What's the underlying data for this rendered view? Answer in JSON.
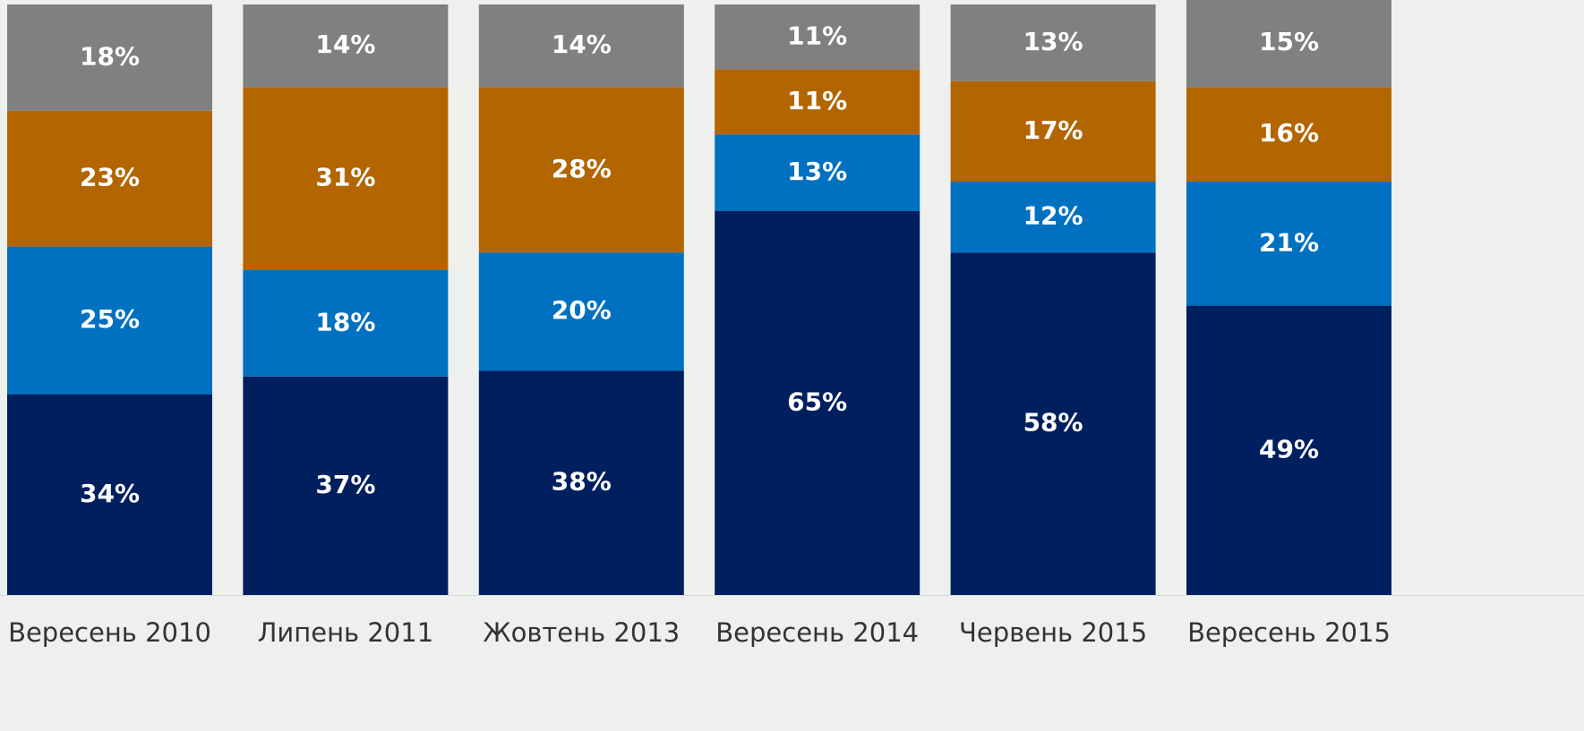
{
  "chart_data": {
    "type": "stacked_bar",
    "categories": [
      "Вересень 2010",
      "Липень 2011",
      "Жовтень 2013",
      "Вересень 2014",
      "Червень 2015",
      "Вересень 2015"
    ],
    "ylim": [
      0,
      100
    ],
    "series": [
      {
        "color": "#001f5f",
        "values": [
          34,
          37,
          38,
          65,
          58,
          49
        ],
        "value_labels": [
          "34%",
          "37%",
          "38%",
          "65%",
          "58%",
          "49%"
        ]
      },
      {
        "color": "#0070c0",
        "values": [
          25,
          18,
          20,
          13,
          12,
          21
        ],
        "value_labels": [
          "25%",
          "18%",
          "20%",
          "13%",
          "12%",
          "21%"
        ]
      },
      {
        "color": "#b36500",
        "values": [
          23,
          31,
          28,
          11,
          17,
          16
        ],
        "value_labels": [
          "23%",
          "31%",
          "28%",
          "11%",
          "17%",
          "16%"
        ]
      },
      {
        "color": "#808080",
        "values": [
          18,
          14,
          14,
          11,
          13,
          15
        ],
        "value_labels": [
          "18%",
          "14%",
          "14%",
          "11%",
          "13%",
          "15%"
        ]
      }
    ]
  }
}
